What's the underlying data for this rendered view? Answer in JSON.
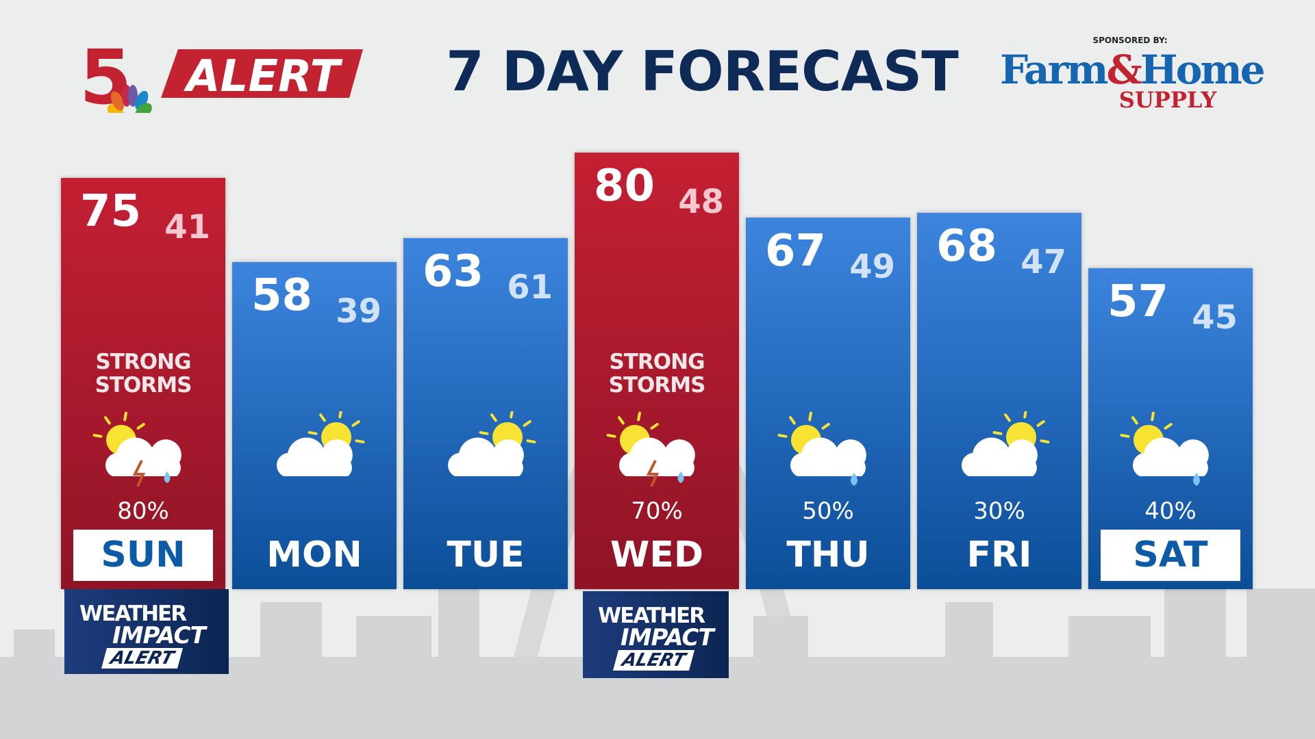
{
  "header": {
    "station_logo": "5",
    "alert_label": "ALERT",
    "title": "7 DAY FORECAST",
    "sponsored_by": "SPONSORED BY:",
    "sponsor_name_1": "Farm",
    "sponsor_amp": "&",
    "sponsor_name_2": "Home",
    "sponsor_supply": "SUPPLY"
  },
  "colors": {
    "alert_red": "#c41f33",
    "normal_blue": "#3c84de",
    "title_navy": "#0e2b57"
  },
  "days": [
    {
      "day": "SUN",
      "high": "75",
      "low": "41",
      "condition_1": "STRONG",
      "condition_2": "STORMS",
      "precip": "80%",
      "icon": "thunderstorm-partly-sunny-icon",
      "alert": true,
      "highlight_label": true
    },
    {
      "day": "MON",
      "high": "58",
      "low": "39",
      "condition_1": "",
      "condition_2": "",
      "precip": "",
      "icon": "partly-cloudy-icon",
      "alert": false,
      "highlight_label": false
    },
    {
      "day": "TUE",
      "high": "63",
      "low": "61",
      "condition_1": "",
      "condition_2": "",
      "precip": "",
      "icon": "partly-cloudy-icon",
      "alert": false,
      "highlight_label": false
    },
    {
      "day": "WED",
      "high": "80",
      "low": "48",
      "condition_1": "STRONG",
      "condition_2": "STORMS",
      "precip": "70%",
      "icon": "thunderstorm-partly-sunny-icon",
      "alert": true,
      "highlight_label": false
    },
    {
      "day": "THU",
      "high": "67",
      "low": "49",
      "condition_1": "",
      "condition_2": "",
      "precip": "50%",
      "icon": "rain-partly-sunny-icon",
      "alert": false,
      "highlight_label": false
    },
    {
      "day": "FRI",
      "high": "68",
      "low": "47",
      "condition_1": "",
      "condition_2": "",
      "precip": "30%",
      "icon": "partly-cloudy-icon",
      "alert": false,
      "highlight_label": false
    },
    {
      "day": "SAT",
      "high": "57",
      "low": "45",
      "condition_1": "",
      "condition_2": "",
      "precip": "40%",
      "icon": "rain-partly-sunny-icon",
      "alert": false,
      "highlight_label": true
    }
  ],
  "impact_alert": {
    "line1": "WEATHER",
    "line2": "IMPACT",
    "line3": "ALERT"
  }
}
